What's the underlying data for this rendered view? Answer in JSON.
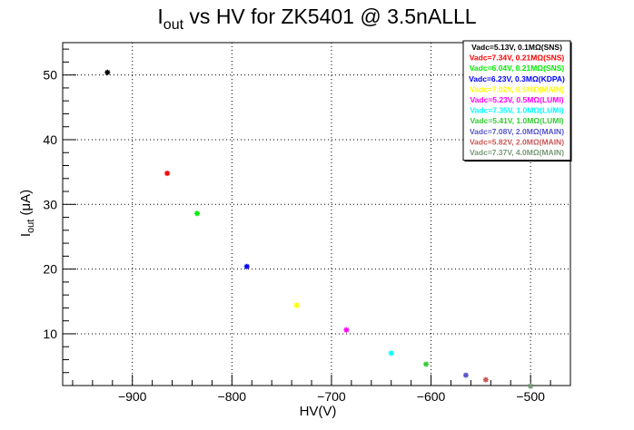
{
  "chart_data": {
    "type": "scatter",
    "title": {
      "main": "I",
      "sub": "out",
      "rest": " vs HV for ZK5401 @ 3.5nALLL"
    },
    "xlabel": "HV(V)",
    "ylabel": {
      "main": "I",
      "sub": "out",
      "rest": " (μA)"
    },
    "xlim": [
      -970,
      -460
    ],
    "ylim": [
      2,
      55
    ],
    "x_ticks": [
      -900,
      -800,
      -700,
      -600,
      -500
    ],
    "x_tick_labels": [
      "−900",
      "−800",
      "−700",
      "−600",
      "−500"
    ],
    "y_ticks": [
      10,
      20,
      30,
      40,
      50
    ],
    "y_tick_labels": [
      "10",
      "20",
      "30",
      "40",
      "50"
    ],
    "grid": true,
    "legend_position": "top-right",
    "series": [
      {
        "name": "Vadc=5.13V, 0.1MΩ(SNS)",
        "color": "#000000",
        "points": [
          [
            -925,
            50.4
          ]
        ]
      },
      {
        "name": "Vadc=7.34V, 0.21MΩ(SNS)",
        "color": "#ff0000",
        "points": [
          [
            -865,
            34.8
          ]
        ]
      },
      {
        "name": "Vadc=6.04V, 0.21MΩ(SNS)",
        "color": "#00ee00",
        "points": [
          [
            -835,
            28.6
          ]
        ]
      },
      {
        "name": "Vadc=6.23V, 0.3MΩ(KDPA)",
        "color": "#0000ff",
        "points": [
          [
            -785,
            20.4
          ]
        ]
      },
      {
        "name": "Vadc=7.02V, 0.5MΩ(MAIN)",
        "color": "#ffff00",
        "points": [
          [
            -735,
            14.4
          ]
        ]
      },
      {
        "name": "Vadc=5.23V, 0.5MΩ(LUMI)",
        "color": "#ff00ff",
        "points": [
          [
            -685,
            10.6
          ]
        ]
      },
      {
        "name": "Vadc=7.35V, 1.0MΩ(LUMI)",
        "color": "#00ffff",
        "points": [
          [
            -640,
            7.0
          ]
        ]
      },
      {
        "name": "Vadc=5.41V, 1.0MΩ(LUMI)",
        "color": "#33cc33",
        "points": [
          [
            -605,
            5.3
          ]
        ]
      },
      {
        "name": "Vadc=7.08V, 2.0MΩ(MAIN)",
        "color": "#5555cc",
        "points": [
          [
            -565,
            3.6
          ]
        ]
      },
      {
        "name": "Vadc=5.82V, 2.0MΩ(MAIN)",
        "color": "#cc5555",
        "points": [
          [
            -545,
            2.9
          ]
        ]
      },
      {
        "name": "Vadc=7.37V, 4.0MΩ(MAIN)",
        "color": "#779977",
        "points": [
          [
            -500,
            1.9
          ]
        ]
      }
    ]
  }
}
